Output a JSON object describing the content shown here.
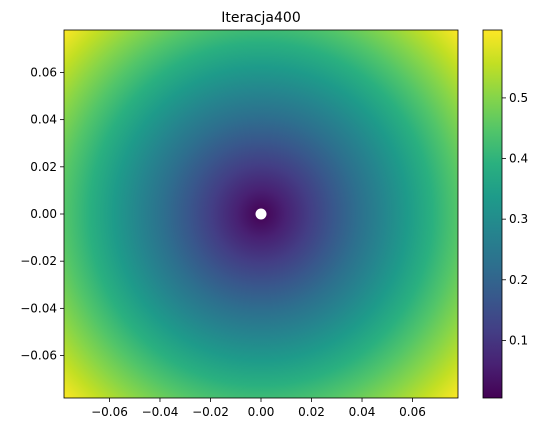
{
  "chart_data": {
    "type": "heatmap",
    "title": "Iteracja400",
    "xlabel": "",
    "ylabel": "",
    "xlim": [
      -0.078,
      0.078
    ],
    "ylim": [
      -0.078,
      0.078
    ],
    "xticks": [
      -0.06,
      -0.04,
      -0.02,
      0.0,
      0.02,
      0.04,
      0.06
    ],
    "xtick_labels": [
      "−0.06",
      "−0.04",
      "−0.02",
      "0.00",
      "0.02",
      "0.04",
      "0.06"
    ],
    "yticks": [
      0.06,
      0.04,
      0.02,
      0.0,
      -0.02,
      -0.04,
      -0.06
    ],
    "ytick_labels": [
      "0.06",
      "0.04",
      "0.02",
      "0.00",
      "−0.02",
      "−0.04",
      "−0.06"
    ],
    "colorbar": {
      "colormap": "viridis",
      "range": [
        0.005,
        0.612
      ],
      "ticks": [
        0.5,
        0.4,
        0.3,
        0.2,
        0.1
      ],
      "tick_labels": [
        "0.5",
        "0.4",
        "0.3",
        "0.2",
        "0.1"
      ]
    },
    "field": "radial distance from origin scaled to color range; minimum at center, maximum at corners",
    "marker": {
      "x": 0.0,
      "y": 0.0,
      "color": "#ffffff"
    },
    "grid": false
  }
}
